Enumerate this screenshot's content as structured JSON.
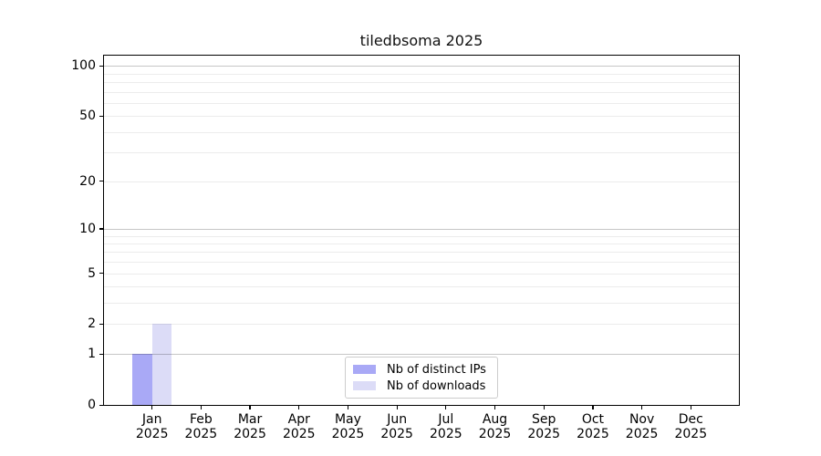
{
  "chart_data": {
    "type": "bar",
    "title": "tiledbsoma 2025",
    "categories": [
      "Jan",
      "Feb",
      "Mar",
      "Apr",
      "May",
      "Jun",
      "Jul",
      "Aug",
      "Sep",
      "Oct",
      "Nov",
      "Dec"
    ],
    "category_year": "2025",
    "series": [
      {
        "name": "Nb of distinct IPs",
        "color": "#a9a9f6",
        "values": [
          1,
          0,
          0,
          0,
          0,
          0,
          0,
          0,
          0,
          0,
          0,
          0
        ]
      },
      {
        "name": "Nb of downloads",
        "color": "#dcdcf7",
        "values": [
          2,
          0,
          0,
          0,
          0,
          0,
          0,
          0,
          0,
          0,
          0,
          0
        ]
      }
    ],
    "yscale": "log10(1+x)",
    "yticks": [
      100,
      50,
      20,
      10,
      5,
      2,
      1,
      0
    ],
    "ylim": [
      0,
      115
    ],
    "xlabel": "",
    "ylabel": "",
    "grid": "horizontal",
    "grid_major_values": [
      1,
      10,
      100
    ],
    "grid_minor_values": [
      2,
      3,
      4,
      5,
      6,
      7,
      8,
      9,
      20,
      30,
      40,
      50,
      60,
      70,
      80,
      90
    ],
    "legend_position": "lower center",
    "colors": {
      "spine": "#000000",
      "grid_major": "#c8c8c8",
      "grid_minor": "#ececec",
      "background": "#ffffff",
      "legend_border": "#cccccc"
    }
  }
}
